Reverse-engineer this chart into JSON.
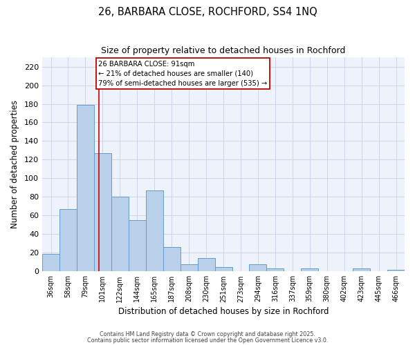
{
  "title": "26, BARBARA CLOSE, ROCHFORD, SS4 1NQ",
  "subtitle": "Size of property relative to detached houses in Rochford",
  "xlabel": "Distribution of detached houses by size in Rochford",
  "ylabel": "Number of detached properties",
  "bar_color": "#b8d0ea",
  "bar_edge_color": "#6699cc",
  "background_color": "#eef2fb",
  "grid_color": "#c8d0e8",
  "categories": [
    "36sqm",
    "58sqm",
    "79sqm",
    "101sqm",
    "122sqm",
    "144sqm",
    "165sqm",
    "187sqm",
    "208sqm",
    "230sqm",
    "251sqm",
    "273sqm",
    "294sqm",
    "316sqm",
    "337sqm",
    "359sqm",
    "380sqm",
    "402sqm",
    "423sqm",
    "445sqm",
    "466sqm"
  ],
  "values": [
    19,
    67,
    179,
    127,
    80,
    55,
    87,
    26,
    8,
    14,
    5,
    0,
    8,
    3,
    0,
    3,
    0,
    0,
    3,
    0,
    2
  ],
  "red_line_x": 2.78,
  "annotation_line1": "26 BARBARA CLOSE: 91sqm",
  "annotation_line2": "← 21% of detached houses are smaller (140)",
  "annotation_line3": "79% of semi-detached houses are larger (535) →",
  "ylim": [
    0,
    230
  ],
  "yticks": [
    0,
    20,
    40,
    60,
    80,
    100,
    120,
    140,
    160,
    180,
    200,
    220
  ],
  "footnote1": "Contains HM Land Registry data © Crown copyright and database right 2025.",
  "footnote2": "Contains public sector information licensed under the Open Government Licence v3.0."
}
